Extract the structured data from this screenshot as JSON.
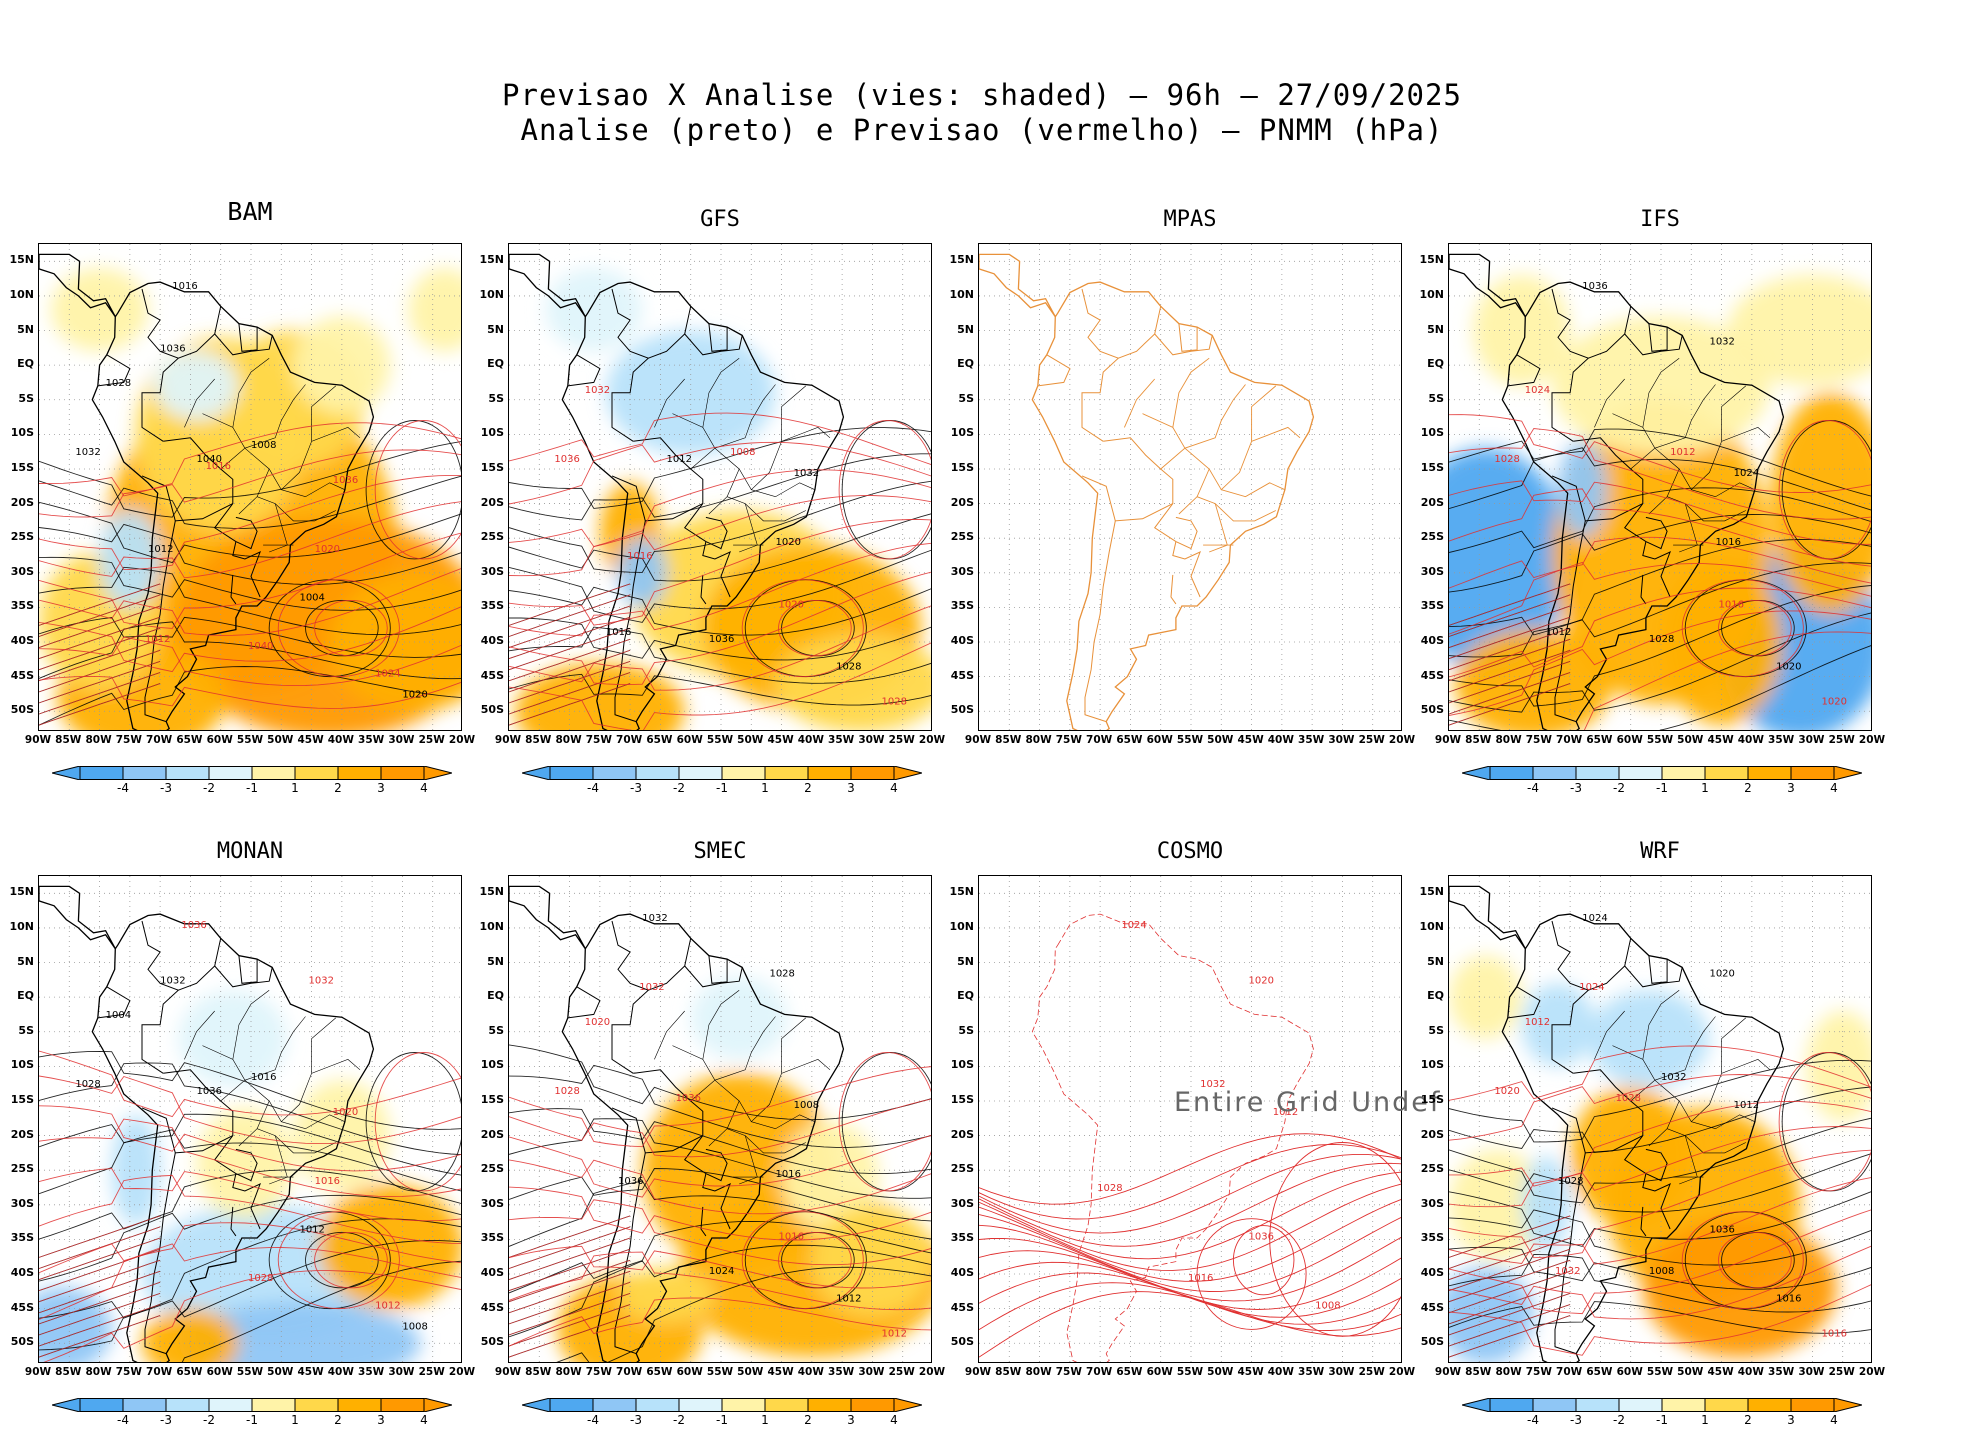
{
  "title": {
    "line1": "Previsao X Analise (vies: shaded) – 96h – 27/09/2025",
    "line2": "Analise (preto) e Previsao (vermelho) – PNMM (hPa)"
  },
  "chart_data": {
    "type": "heatmap",
    "variable": "PNMM (hPa)",
    "bias_shading": "Previsao - Analise",
    "lat_ticks": [
      "15N",
      "10N",
      "5N",
      "EQ",
      "5S",
      "10S",
      "15S",
      "20S",
      "25S",
      "30S",
      "35S",
      "40S",
      "45S",
      "50S"
    ],
    "lon_ticks": [
      "90W",
      "85W",
      "80W",
      "75W",
      "70W",
      "65W",
      "60W",
      "55W",
      "50W",
      "45W",
      "40W",
      "35W",
      "30W",
      "25W",
      "20W"
    ],
    "colorbar": {
      "ticks": [
        "-4",
        "-3",
        "-2",
        "-1",
        "1",
        "2",
        "3",
        "4"
      ],
      "colors": [
        "#4fa8f0",
        "#8fc6f5",
        "#b7e2fa",
        "#dff4fb",
        "#ffffff",
        "#fff3a8",
        "#ffd84a",
        "#ffb000",
        "#ff9900"
      ]
    },
    "analysis_color": "#000000",
    "forecast_color": "#e03030",
    "panels": [
      {
        "model": "BAM",
        "status": "ok",
        "bias_sign": "positive",
        "labels_black": [
          "1016",
          "1012",
          "1008",
          "1004",
          "1020",
          "1028",
          "1032",
          "1036",
          "1040"
        ],
        "labels_red": [
          "1016",
          "1012",
          "1020",
          "1024",
          "1036",
          "1040"
        ]
      },
      {
        "model": "GFS",
        "status": "ok",
        "bias_sign": "mixed",
        "labels_black": [
          "1012",
          "1016",
          "1020",
          "1028",
          "1032",
          "1036"
        ],
        "labels_red": [
          "1016",
          "1008",
          "1020",
          "1028",
          "1032",
          "1036"
        ]
      },
      {
        "model": "MPAS",
        "status": "undefined",
        "bias_sign": "none",
        "labels_black": [],
        "labels_red": []
      },
      {
        "model": "IFS",
        "status": "ok",
        "bias_sign": "mixed",
        "labels_black": [
          "1012",
          "1016",
          "1020",
          "1024",
          "1028",
          "1032",
          "1036"
        ],
        "labels_red": [
          "1012",
          "1016",
          "1020",
          "1024",
          "1028"
        ]
      },
      {
        "model": "MONAN",
        "status": "ok",
        "bias_sign": "mixed",
        "labels_black": [
          "1016",
          "1012",
          "1008",
          "1004",
          "1028",
          "1032",
          "1036"
        ],
        "labels_red": [
          "1016",
          "1012",
          "1020",
          "1028",
          "1032",
          "1036"
        ]
      },
      {
        "model": "SMEC",
        "status": "ok",
        "bias_sign": "positive",
        "labels_black": [
          "1016",
          "1012",
          "1008",
          "1024",
          "1028",
          "1032",
          "1036"
        ],
        "labels_red": [
          "1016",
          "1012",
          "1020",
          "1028",
          "1032",
          "1036"
        ]
      },
      {
        "model": "COSMO",
        "status": "undefined",
        "bias_sign": "none",
        "note": "Entire Grid Undef",
        "labels_black": [],
        "labels_red": [
          "1008",
          "1012",
          "1016",
          "1020",
          "1024",
          "1028",
          "1032",
          "1036"
        ]
      },
      {
        "model": "WRF",
        "status": "ok",
        "bias_sign": "positive",
        "labels_black": [
          "1016",
          "1012",
          "1008",
          "1020",
          "1024",
          "1028",
          "1032",
          "1036"
        ],
        "labels_red": [
          "1016",
          "1012",
          "1020",
          "1024",
          "1028",
          "1032"
        ]
      }
    ]
  }
}
